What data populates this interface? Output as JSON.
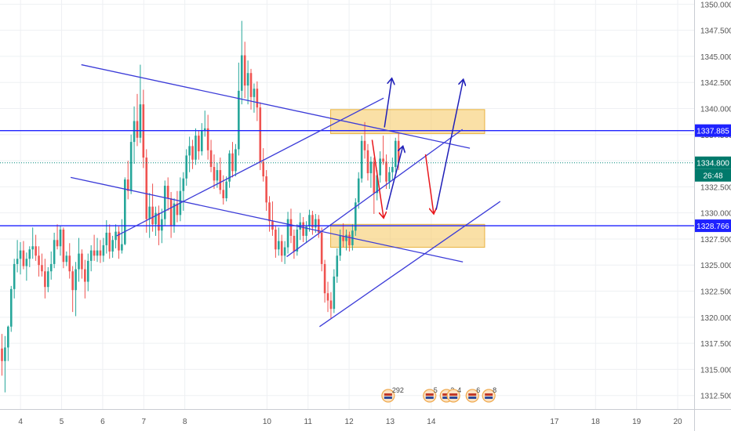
{
  "chart_data": {
    "type": "candlestick",
    "ylim": [
      1311.2,
      1350.4
    ],
    "y_ticks": [
      1312.5,
      1315.0,
      1317.5,
      1320.0,
      1322.5,
      1325.0,
      1327.5,
      1330.0,
      1332.5,
      1335.0,
      1337.5,
      1340.0,
      1342.5,
      1345.0,
      1347.5,
      1350.0
    ],
    "y_tick_labels": [
      "1312.500",
      "1315.000",
      "1317.500",
      "1320.000",
      "1322.500",
      "1325.000",
      "1327.500",
      "1330.000",
      "1332.500",
      "1335.000",
      "1337.500",
      "1340.000",
      "1342.500",
      "1345.000",
      "1347.500",
      "1350.000"
    ],
    "x_range": [
      3.5,
      20.4
    ],
    "x_ticks": [
      4,
      5,
      6,
      7,
      8,
      10,
      11,
      12,
      13,
      14,
      17,
      18,
      19,
      20
    ],
    "x_tick_labels": [
      "4",
      "5",
      "6",
      "7",
      "8",
      "10",
      "11",
      "12",
      "13",
      "14",
      "17",
      "18",
      "19",
      "20"
    ],
    "colors": {
      "up": "#26a69a",
      "down": "#ef5350",
      "level_line": "#1e22ff",
      "trend_line": "#3b3bd8",
      "zone_fill": "#f5c65c",
      "arrow_red": "#e8161b",
      "arrow_blue": "#1f1fb8",
      "current_line": "#00897b"
    },
    "levels": [
      {
        "price": 1337.885,
        "label": "1337.885"
      },
      {
        "price": 1328.766,
        "label": "1328.766"
      }
    ],
    "current_price": {
      "price": 1334.8,
      "label": "1334.800",
      "countdown": "26:48"
    },
    "zones": [
      {
        "x0": 11.55,
        "x1": 15.3,
        "y0": 1337.6,
        "y1": 1339.9
      },
      {
        "x0": 11.55,
        "x1": 15.3,
        "y0": 1326.7,
        "y1": 1328.9
      }
    ],
    "trend_lines": [
      {
        "x0": 5.48,
        "y0": 1344.2,
        "x1": 14.94,
        "y1": 1336.2
      },
      {
        "x0": 5.22,
        "y0": 1333.4,
        "x1": 14.77,
        "y1": 1325.3
      },
      {
        "x0": 6.34,
        "y0": 1327.8,
        "x1": 12.84,
        "y1": 1341.0
      },
      {
        "x0": 10.48,
        "y0": 1325.8,
        "x1": 14.76,
        "y1": 1338.0
      },
      {
        "x0": 11.28,
        "y0": 1319.1,
        "x1": 15.68,
        "y1": 1331.1
      }
    ],
    "arrows": [
      {
        "color": "red",
        "x0": 12.56,
        "y0": 1337.0,
        "x1": 12.84,
        "y1": 1329.5
      },
      {
        "color": "red",
        "x0": 13.86,
        "y0": 1335.6,
        "x1": 14.06,
        "y1": 1329.9
      },
      {
        "color": "blue",
        "x0": 12.86,
        "y0": 1338.2,
        "x1": 13.04,
        "y1": 1342.9
      },
      {
        "color": "blue",
        "x0": 12.91,
        "y0": 1330.3,
        "x1": 13.31,
        "y1": 1336.4
      },
      {
        "color": "blue",
        "x0": 14.12,
        "y0": 1330.3,
        "x1": 14.78,
        "y1": 1342.8
      }
    ],
    "event_markers": [
      {
        "x": 12.95,
        "label": "292"
      },
      {
        "x": 13.96,
        "label": "5"
      },
      {
        "x": 14.37,
        "label": "3"
      },
      {
        "x": 14.54,
        "label": "4"
      },
      {
        "x": 15.0,
        "label": "6"
      },
      {
        "x": 15.4,
        "label": "8"
      }
    ],
    "candles": [
      [
        1317.0,
        1318.4,
        1314.4,
        1315.8
      ],
      [
        1315.8,
        1318.2,
        1312.8,
        1317.1
      ],
      [
        1317.1,
        1319.2,
        1315.8,
        1319.1
      ],
      [
        1319.1,
        1323.0,
        1318.6,
        1322.7
      ],
      [
        1322.7,
        1325.6,
        1321.8,
        1325.1
      ],
      [
        1325.1,
        1327.4,
        1324.3,
        1325.6
      ],
      [
        1325.6,
        1327.2,
        1324.1,
        1326.4
      ],
      [
        1326.4,
        1327.3,
        1324.6,
        1324.9
      ],
      [
        1324.9,
        1326.2,
        1323.5,
        1325.6
      ],
      [
        1325.6,
        1326.8,
        1324.8,
        1326.5
      ],
      [
        1326.5,
        1328.6,
        1325.6,
        1326.8
      ],
      [
        1326.8,
        1327.9,
        1325.4,
        1325.9
      ],
      [
        1325.9,
        1326.8,
        1323.9,
        1325.0
      ],
      [
        1325.0,
        1326.1,
        1323.9,
        1324.4
      ],
      [
        1324.4,
        1325.6,
        1321.8,
        1322.9
      ],
      [
        1322.9,
        1324.8,
        1322.4,
        1324.4
      ],
      [
        1324.4,
        1326.3,
        1323.6,
        1325.1
      ],
      [
        1325.1,
        1328.1,
        1324.7,
        1327.4
      ],
      [
        1327.4,
        1328.9,
        1326.5,
        1326.8
      ],
      [
        1326.8,
        1328.8,
        1325.9,
        1328.4
      ],
      [
        1328.4,
        1328.6,
        1324.7,
        1325.3
      ],
      [
        1325.3,
        1326.3,
        1324.9,
        1325.9
      ],
      [
        1325.9,
        1327.1,
        1323.7,
        1324.4
      ],
      [
        1324.4,
        1324.9,
        1320.5,
        1322.6
      ],
      [
        1322.6,
        1325.3,
        1320.1,
        1324.6
      ],
      [
        1324.6,
        1327.6,
        1323.4,
        1326.1
      ],
      [
        1326.1,
        1326.5,
        1323.7,
        1324.6
      ],
      [
        1324.6,
        1325.5,
        1321.8,
        1323.4
      ],
      [
        1323.4,
        1326.1,
        1322.5,
        1325.4
      ],
      [
        1325.4,
        1326.9,
        1324.4,
        1326.4
      ],
      [
        1326.4,
        1327.9,
        1325.4,
        1325.9
      ],
      [
        1325.9,
        1327.6,
        1325.3,
        1326.4
      ],
      [
        1326.4,
        1327.4,
        1325.2,
        1325.9
      ],
      [
        1325.9,
        1327.6,
        1325.3,
        1326.9
      ],
      [
        1326.9,
        1329.3,
        1326.1,
        1328.1
      ],
      [
        1328.1,
        1328.9,
        1325.6,
        1326.3
      ],
      [
        1326.3,
        1327.8,
        1325.7,
        1327.4
      ],
      [
        1327.4,
        1328.9,
        1326.6,
        1328.2
      ],
      [
        1328.2,
        1328.7,
        1325.6,
        1326.4
      ],
      [
        1326.4,
        1329.4,
        1326.1,
        1327.0
      ],
      [
        1327.0,
        1333.4,
        1326.9,
        1333.2
      ],
      [
        1333.2,
        1335.0,
        1331.3,
        1332.1
      ],
      [
        1332.1,
        1337.5,
        1331.8,
        1336.8
      ],
      [
        1336.8,
        1340.2,
        1334.7,
        1338.8
      ],
      [
        1338.8,
        1341.4,
        1336.4,
        1337.2
      ],
      [
        1337.2,
        1344.2,
        1336.7,
        1340.4
      ],
      [
        1340.4,
        1341.8,
        1334.3,
        1335.3
      ],
      [
        1335.3,
        1336.1,
        1328.1,
        1329.4
      ],
      [
        1329.4,
        1331.9,
        1327.6,
        1330.6
      ],
      [
        1330.6,
        1332.8,
        1328.2,
        1328.9
      ],
      [
        1328.9,
        1330.6,
        1327.8,
        1330.0
      ],
      [
        1330.0,
        1330.7,
        1326.9,
        1328.3
      ],
      [
        1328.3,
        1330.4,
        1327.1,
        1329.4
      ],
      [
        1329.4,
        1333.1,
        1328.8,
        1332.6
      ],
      [
        1332.6,
        1333.4,
        1330.2,
        1331.4
      ],
      [
        1331.4,
        1332.0,
        1327.6,
        1328.8
      ],
      [
        1328.8,
        1331.4,
        1328.1,
        1330.9
      ],
      [
        1330.9,
        1332.1,
        1329.1,
        1329.8
      ],
      [
        1329.8,
        1333.4,
        1329.2,
        1332.1
      ],
      [
        1332.1,
        1333.9,
        1330.2,
        1333.3
      ],
      [
        1333.3,
        1336.1,
        1332.6,
        1335.5
      ],
      [
        1335.5,
        1337.3,
        1333.9,
        1336.4
      ],
      [
        1336.4,
        1337.0,
        1334.2,
        1335.1
      ],
      [
        1335.1,
        1338.1,
        1334.6,
        1337.4
      ],
      [
        1337.4,
        1337.9,
        1335.1,
        1335.9
      ],
      [
        1335.9,
        1338.6,
        1335.5,
        1337.9
      ],
      [
        1337.9,
        1339.8,
        1337.3,
        1338.1
      ],
      [
        1338.1,
        1339.4,
        1335.1,
        1336.0
      ],
      [
        1336.0,
        1337.0,
        1333.9,
        1334.4
      ],
      [
        1334.4,
        1335.6,
        1332.3,
        1333.1
      ],
      [
        1333.1,
        1334.8,
        1332.4,
        1334.1
      ],
      [
        1334.1,
        1335.3,
        1331.8,
        1332.2
      ],
      [
        1332.2,
        1333.6,
        1330.8,
        1331.4
      ],
      [
        1331.4,
        1333.5,
        1331.1,
        1333.0
      ],
      [
        1333.0,
        1336.0,
        1332.4,
        1335.7
      ],
      [
        1335.7,
        1336.8,
        1333.4,
        1334.0
      ],
      [
        1334.0,
        1336.6,
        1333.5,
        1336.1
      ],
      [
        1336.1,
        1344.4,
        1335.5,
        1341.7
      ],
      [
        1341.7,
        1348.4,
        1340.4,
        1345.1
      ],
      [
        1345.1,
        1346.4,
        1341.0,
        1342.2
      ],
      [
        1342.2,
        1344.6,
        1340.4,
        1343.4
      ],
      [
        1343.4,
        1343.8,
        1339.9,
        1341.1
      ],
      [
        1341.1,
        1342.4,
        1339.6,
        1341.9
      ],
      [
        1341.9,
        1342.6,
        1338.8,
        1340.1
      ],
      [
        1340.1,
        1340.6,
        1334.1,
        1334.9
      ],
      [
        1334.9,
        1336.2,
        1333.0,
        1333.5
      ],
      [
        1333.5,
        1334.1,
        1330.2,
        1331.0
      ],
      [
        1331.0,
        1331.6,
        1328.2,
        1329.2
      ],
      [
        1329.2,
        1331.1,
        1327.8,
        1328.4
      ],
      [
        1328.4,
        1328.8,
        1325.7,
        1326.5
      ],
      [
        1326.5,
        1328.6,
        1325.9,
        1327.3
      ],
      [
        1327.3,
        1327.9,
        1325.3,
        1325.9
      ],
      [
        1325.9,
        1327.3,
        1325.1,
        1326.7
      ],
      [
        1326.7,
        1330.1,
        1326.1,
        1329.4
      ],
      [
        1329.4,
        1330.4,
        1327.1,
        1327.8
      ],
      [
        1327.8,
        1328.4,
        1325.6,
        1326.3
      ],
      [
        1326.3,
        1328.9,
        1325.9,
        1328.4
      ],
      [
        1328.4,
        1330.0,
        1327.4,
        1329.1
      ],
      [
        1329.1,
        1329.6,
        1327.2,
        1327.8
      ],
      [
        1327.8,
        1329.2,
        1327.1,
        1328.7
      ],
      [
        1328.7,
        1330.3,
        1328.2,
        1329.8
      ],
      [
        1329.8,
        1330.2,
        1327.9,
        1328.6
      ],
      [
        1328.6,
        1329.9,
        1328.1,
        1329.4
      ],
      [
        1329.4,
        1329.8,
        1327.6,
        1328.1
      ],
      [
        1328.1,
        1328.6,
        1324.4,
        1325.1
      ],
      [
        1325.1,
        1325.5,
        1321.4,
        1322.3
      ],
      [
        1322.3,
        1323.4,
        1320.5,
        1321.6
      ],
      [
        1321.6,
        1322.4,
        1319.9,
        1320.8
      ],
      [
        1320.8,
        1324.6,
        1320.4,
        1323.9
      ],
      [
        1323.9,
        1326.6,
        1323.3,
        1325.9
      ],
      [
        1325.9,
        1328.4,
        1325.4,
        1327.8
      ],
      [
        1327.8,
        1329.0,
        1326.7,
        1327.3
      ],
      [
        1327.3,
        1328.4,
        1326.4,
        1327.9
      ],
      [
        1327.9,
        1328.2,
        1326.3,
        1326.9
      ],
      [
        1326.9,
        1328.9,
        1326.4,
        1328.3
      ],
      [
        1328.3,
        1331.4,
        1327.8,
        1331.0
      ],
      [
        1331.0,
        1333.9,
        1330.4,
        1333.3
      ],
      [
        1333.3,
        1337.4,
        1332.9,
        1336.9
      ],
      [
        1336.9,
        1338.7,
        1335.2,
        1336.0
      ],
      [
        1336.0,
        1336.6,
        1333.1,
        1333.8
      ],
      [
        1333.8,
        1335.4,
        1332.4,
        1334.9
      ],
      [
        1334.9,
        1335.3,
        1329.9,
        1331.9
      ],
      [
        1331.9,
        1334.1,
        1331.2,
        1333.6
      ],
      [
        1333.6,
        1335.9,
        1332.9,
        1335.2
      ],
      [
        1335.2,
        1337.4,
        1334.6,
        1334.9
      ],
      [
        1334.9,
        1335.6,
        1332.3,
        1333.0
      ],
      [
        1333.0,
        1334.4,
        1332.3,
        1333.9
      ],
      [
        1333.9,
        1335.3,
        1333.1,
        1334.4
      ],
      [
        1334.4,
        1337.2,
        1333.9,
        1336.9
      ],
      [
        1336.9,
        1337.6,
        1334.1,
        1334.8
      ]
    ]
  }
}
